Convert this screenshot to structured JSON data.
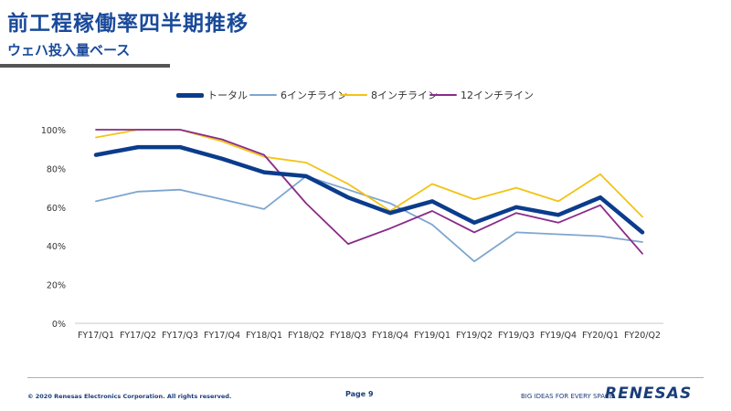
{
  "header": {
    "title": "前工程稼働率四半期推移",
    "subtitle": "ウェハ投入量ベース"
  },
  "chart_data": {
    "type": "line",
    "categories": [
      "FY17/Q1",
      "FY17/Q2",
      "FY17/Q3",
      "FY17/Q4",
      "FY18/Q1",
      "FY18/Q2",
      "FY18/Q3",
      "FY18/Q4",
      "FY19/Q1",
      "FY19/Q2",
      "FY19/Q3",
      "FY19/Q4",
      "FY20/Q1",
      "FY20/Q2"
    ],
    "ylim": [
      0,
      100
    ],
    "yticks": [
      0,
      20,
      40,
      60,
      80,
      100
    ],
    "ytick_labels": [
      "0%",
      "20%",
      "40%",
      "60%",
      "80%",
      "100%"
    ],
    "grid": false,
    "legend": "top",
    "series": [
      {
        "name": "トータル",
        "color": "#0b3c8c",
        "values": [
          87,
          91,
          91,
          85,
          78,
          76,
          65,
          57,
          63,
          52,
          60,
          56,
          65,
          47
        ]
      },
      {
        "name": "6インチライン",
        "color": "#7ea6d0",
        "values": [
          63,
          68,
          69,
          64,
          59,
          76,
          69,
          62,
          51,
          32,
          47,
          46,
          45,
          42
        ]
      },
      {
        "name": "8インチライン",
        "color": "#f2c314",
        "values": [
          96,
          100,
          100,
          94,
          86,
          83,
          72,
          58,
          72,
          64,
          70,
          63,
          77,
          55
        ]
      },
      {
        "name": "12インチライン",
        "color": "#8a2a8a",
        "values": [
          100,
          100,
          100,
          95,
          87,
          62,
          41,
          49,
          58,
          47,
          57,
          52,
          61,
          36
        ]
      }
    ]
  },
  "footer": {
    "copyright": "© 2020 Renesas Electronics Corporation. All rights reserved.",
    "page": "Page 9",
    "tagline": "BIG IDEAS FOR EVERY SPACE",
    "logo": "RENESAS"
  }
}
